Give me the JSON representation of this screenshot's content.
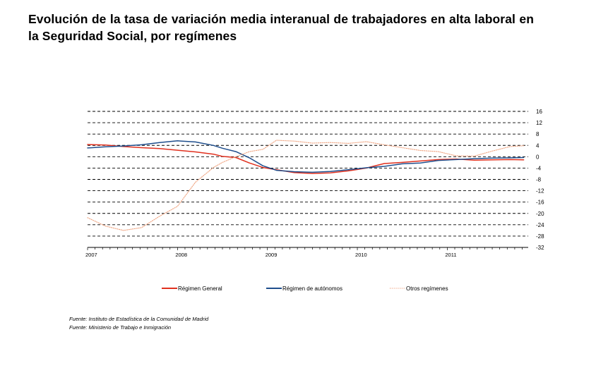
{
  "title": "Evolución de la tasa de variación media interanual de trabajadores en alta laboral en la Seguridad Social, por  regímenes",
  "sources": [
    "Fuente: Instituto de Estadística de la Comunidad de Madrid",
    "Fuente: Ministerio de Trabajo e Inmigración"
  ],
  "chart_data": {
    "type": "line",
    "title": "",
    "xlabel": "",
    "ylabel": "",
    "xlim": [
      2007,
      2011.9
    ],
    "ylim": [
      -32,
      16
    ],
    "x_ticks": [
      2007,
      2008,
      2009,
      2010,
      2011
    ],
    "x_tick_labels": [
      "2007",
      "2008",
      "2009",
      "2010",
      "2011"
    ],
    "y_ticks": [
      16,
      12,
      8,
      4,
      0,
      -4,
      -8,
      -12,
      -16,
      -20,
      -24,
      -28,
      -32
    ],
    "y_tick_labels": [
      "16",
      "12",
      "8",
      "4",
      "0",
      "-4",
      "-8",
      "-12",
      "-16",
      "-20",
      "-24",
      "-28",
      "-32"
    ],
    "grid": "horizontal dashed",
    "legend_position": "bottom",
    "series": [
      {
        "name": "Régimen General",
        "color": "#e0301e",
        "style": "solid",
        "x": [
          2007.0,
          2007.2,
          2007.4,
          2007.6,
          2007.8,
          2008.0,
          2008.2,
          2008.4,
          2008.5,
          2008.65,
          2008.8,
          2008.95,
          2009.1,
          2009.3,
          2009.5,
          2009.7,
          2009.9,
          2010.1,
          2010.3,
          2010.5,
          2010.7,
          2010.9,
          2011.1,
          2011.3,
          2011.5,
          2011.7,
          2011.85
        ],
        "y": [
          4.3,
          4.1,
          3.6,
          3.2,
          2.9,
          2.3,
          1.7,
          0.9,
          0.1,
          -0.3,
          -2.2,
          -3.8,
          -4.6,
          -5.6,
          -5.9,
          -5.7,
          -5.0,
          -4.0,
          -2.4,
          -2.0,
          -1.5,
          -1.0,
          -0.8,
          -1.2,
          -1.1,
          -1.0,
          -1.1
        ]
      },
      {
        "name": "Régimen de autónomos",
        "color": "#1f4e8c",
        "style": "solid",
        "x": [
          2007.0,
          2007.2,
          2007.4,
          2007.6,
          2007.8,
          2008.0,
          2008.2,
          2008.4,
          2008.5,
          2008.65,
          2008.8,
          2008.95,
          2009.1,
          2009.3,
          2009.5,
          2009.7,
          2009.9,
          2010.1,
          2010.3,
          2010.5,
          2010.7,
          2010.9,
          2011.1,
          2011.3,
          2011.5,
          2011.7,
          2011.85
        ],
        "y": [
          3.1,
          3.5,
          3.8,
          4.2,
          5.0,
          5.6,
          5.2,
          4.0,
          3.0,
          1.8,
          -0.4,
          -3.2,
          -4.8,
          -5.3,
          -5.5,
          -5.2,
          -4.6,
          -3.9,
          -3.4,
          -2.5,
          -2.2,
          -1.3,
          -1.0,
          -0.7,
          -0.5,
          -0.4,
          -0.3
        ]
      },
      {
        "name": "Otros regímenes",
        "color": "#f0a886",
        "style": "dotted",
        "x": [
          2007.0,
          2007.2,
          2007.4,
          2007.6,
          2007.8,
          2008.0,
          2008.2,
          2008.4,
          2008.5,
          2008.65,
          2008.8,
          2008.95,
          2009.1,
          2009.3,
          2009.5,
          2009.7,
          2009.9,
          2010.1,
          2010.3,
          2010.5,
          2010.7,
          2010.9,
          2011.1,
          2011.3,
          2011.5,
          2011.7,
          2011.85
        ],
        "y": [
          -21.5,
          -24.5,
          -26.0,
          -25.0,
          -21.0,
          -17.5,
          -9.0,
          -3.8,
          -2.0,
          0.0,
          1.8,
          2.6,
          5.8,
          5.5,
          4.8,
          5.0,
          4.7,
          5.3,
          4.2,
          3.2,
          2.2,
          1.8,
          0.3,
          0.2,
          2.0,
          3.6,
          3.9
        ]
      }
    ]
  }
}
